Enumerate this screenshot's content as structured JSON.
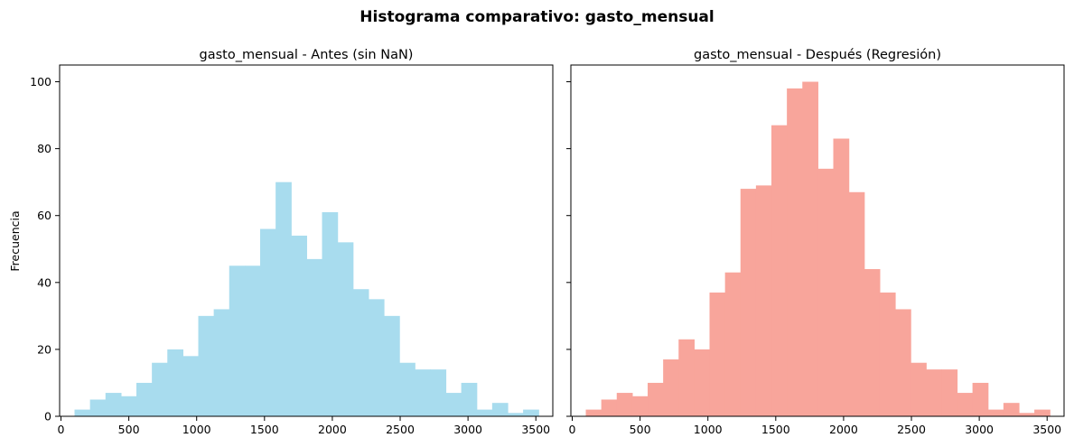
{
  "figure": {
    "title": "Histograma comparativo: gasto_mensual"
  },
  "chart_data": [
    {
      "type": "bar",
      "title": "gasto_mensual - Antes (sin NaN)",
      "xlabel": "",
      "ylabel": "Frecuencia",
      "color": "#a8dcee",
      "xlim": [
        -10,
        3625
      ],
      "ylim": [
        0,
        105
      ],
      "xticks": [
        0,
        500,
        1000,
        1500,
        2000,
        2500,
        3000,
        3500
      ],
      "yticks": [
        0,
        20,
        40,
        60,
        80,
        100
      ],
      "bin_edges": [
        100,
        214,
        328,
        442,
        556,
        670,
        784,
        898,
        1012,
        1126,
        1240,
        1354,
        1468,
        1582,
        1696,
        1810,
        1924,
        2038,
        2152,
        2266,
        2380,
        2494,
        2608,
        2722,
        2836,
        2950,
        3064,
        3178,
        3292,
        3406,
        3520
      ],
      "values": [
        2,
        5,
        7,
        6,
        10,
        16,
        20,
        18,
        30,
        32,
        45,
        45,
        56,
        70,
        54,
        47,
        61,
        52,
        38,
        35,
        30,
        16,
        14,
        14,
        7,
        10,
        2,
        4,
        1,
        2
      ]
    },
    {
      "type": "bar",
      "title": "gasto_mensual - Después (Regresión)",
      "xlabel": "",
      "ylabel": "",
      "color": "#f8a59b",
      "xlim": [
        -10,
        3625
      ],
      "ylim": [
        0,
        105
      ],
      "xticks": [
        0,
        500,
        1000,
        1500,
        2000,
        2500,
        3000,
        3500
      ],
      "yticks": [
        0,
        20,
        40,
        60,
        80,
        100
      ],
      "bin_edges": [
        100,
        214,
        328,
        442,
        556,
        670,
        784,
        898,
        1012,
        1126,
        1240,
        1354,
        1468,
        1582,
        1696,
        1810,
        1924,
        2038,
        2152,
        2266,
        2380,
        2494,
        2608,
        2722,
        2836,
        2950,
        3064,
        3178,
        3292,
        3406,
        3520
      ],
      "values": [
        2,
        5,
        7,
        6,
        10,
        17,
        23,
        20,
        37,
        43,
        68,
        69,
        87,
        98,
        100,
        74,
        83,
        67,
        44,
        37,
        32,
        16,
        14,
        14,
        7,
        10,
        2,
        4,
        1,
        2
      ]
    }
  ]
}
